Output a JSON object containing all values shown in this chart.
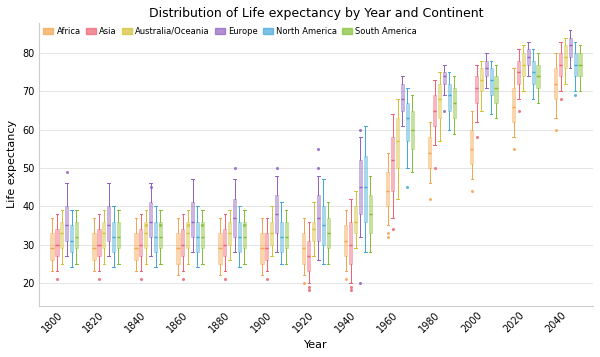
{
  "title": "Distribution of Life expectancy by Year and Continent",
  "xlabel": "Year",
  "ylabel": "Life expectancy",
  "continents": [
    "Africa",
    "Asia",
    "Australia/Oceania",
    "Europe",
    "North America",
    "South America"
  ],
  "colors": {
    "Africa": "#F4A44A",
    "Asia": "#EE6070",
    "Australia/Oceania": "#D4C030",
    "Europe": "#9060C0",
    "North America": "#40A8D8",
    "South America": "#80C030"
  },
  "years": [
    1800,
    1820,
    1840,
    1860,
    1880,
    1900,
    1920,
    1940,
    1960,
    1980,
    2000,
    2020,
    2040
  ],
  "ylim": [
    14,
    88
  ],
  "yticks": [
    20,
    30,
    40,
    50,
    60,
    70,
    80
  ],
  "background": "#ffffff",
  "grid_color": "#e0e0e0",
  "box_stats": {
    "Africa": {
      "1800": [
        23,
        26,
        29,
        33,
        37,
        []
      ],
      "1820": [
        23,
        26,
        29,
        33,
        37,
        []
      ],
      "1840": [
        23,
        26,
        29,
        33,
        37,
        []
      ],
      "1860": [
        22,
        25,
        29,
        33,
        37,
        []
      ],
      "1880": [
        22,
        25,
        29,
        33,
        37,
        []
      ],
      "1900": [
        22,
        25,
        29,
        33,
        37,
        []
      ],
      "1920": [
        22,
        25,
        29,
        33,
        37,
        [
          20
        ]
      ],
      "1940": [
        23,
        27,
        31,
        35,
        39,
        [
          21
        ]
      ],
      "1960": [
        35,
        40,
        44,
        49,
        54,
        [
          32,
          33
        ]
      ],
      "1980": [
        46,
        50,
        54,
        58,
        62,
        [
          42
        ]
      ],
      "2000": [
        47,
        51,
        55,
        60,
        65,
        [
          44
        ]
      ],
      "2020": [
        58,
        62,
        66,
        71,
        76,
        [
          55
        ]
      ],
      "2040": [
        63,
        68,
        72,
        76,
        80,
        [
          60
        ]
      ]
    },
    "Asia": {
      "1800": [
        23,
        27,
        30,
        34,
        38,
        [
          21
        ]
      ],
      "1820": [
        23,
        27,
        30,
        34,
        38,
        [
          21
        ]
      ],
      "1840": [
        23,
        27,
        30,
        34,
        38,
        [
          21
        ]
      ],
      "1860": [
        23,
        27,
        30,
        34,
        38,
        [
          21
        ]
      ],
      "1880": [
        23,
        27,
        30,
        34,
        38,
        [
          21
        ]
      ],
      "1900": [
        23,
        26,
        29,
        33,
        37,
        [
          21
        ]
      ],
      "1920": [
        20,
        23,
        27,
        31,
        36,
        [
          18,
          19
        ]
      ],
      "1940": [
        20,
        25,
        30,
        36,
        42,
        [
          18,
          19
        ]
      ],
      "1960": [
        37,
        44,
        52,
        58,
        64,
        [
          34
        ]
      ],
      "1980": [
        56,
        61,
        65,
        69,
        73,
        [
          50
        ]
      ],
      "2000": [
        62,
        67,
        71,
        74,
        77,
        [
          58
        ]
      ],
      "2020": [
        68,
        72,
        75,
        78,
        81,
        [
          65
        ]
      ],
      "2040": [
        70,
        74,
        77,
        80,
        83,
        [
          68
        ]
      ]
    },
    "Australia/Oceania": {
      "1800": [
        25,
        29,
        33,
        36,
        39,
        []
      ],
      "1820": [
        25,
        29,
        33,
        36,
        39,
        []
      ],
      "1840": [
        25,
        29,
        33,
        36,
        39,
        [
          35
        ]
      ],
      "1860": [
        25,
        29,
        33,
        36,
        39,
        [
          35
        ]
      ],
      "1880": [
        26,
        30,
        33,
        36,
        39,
        []
      ],
      "1900": [
        27,
        30,
        33,
        36,
        40,
        []
      ],
      "1920": [
        27,
        31,
        34,
        36,
        41,
        []
      ],
      "1940": [
        29,
        33,
        36,
        40,
        44,
        []
      ],
      "1960": [
        42,
        50,
        57,
        63,
        68,
        []
      ],
      "1980": [
        57,
        63,
        68,
        72,
        75,
        []
      ],
      "2000": [
        65,
        70,
        73,
        76,
        78,
        []
      ],
      "2020": [
        70,
        74,
        77,
        80,
        82,
        []
      ],
      "2040": [
        72,
        76,
        79,
        82,
        84,
        []
      ]
    },
    "Europe": {
      "1800": [
        27,
        31,
        35,
        40,
        46,
        [
          49
        ]
      ],
      "1820": [
        27,
        31,
        35,
        40,
        46,
        []
      ],
      "1840": [
        27,
        32,
        36,
        41,
        46,
        [
          45
        ]
      ],
      "1860": [
        28,
        32,
        36,
        41,
        47,
        []
      ],
      "1880": [
        28,
        32,
        37,
        42,
        47,
        [
          50
        ]
      ],
      "1900": [
        28,
        33,
        38,
        43,
        48,
        [
          50
        ]
      ],
      "1920": [
        26,
        31,
        37,
        43,
        48,
        [
          50,
          55
        ]
      ],
      "1940": [
        32,
        38,
        45,
        52,
        58,
        [
          60,
          20
        ]
      ],
      "1960": [
        61,
        65,
        68,
        72,
        74,
        []
      ],
      "1980": [
        69,
        72,
        74,
        75,
        77,
        [
          65
        ]
      ],
      "2000": [
        71,
        74,
        76,
        78,
        80,
        []
      ],
      "2020": [
        74,
        77,
        79,
        81,
        83,
        []
      ],
      "2040": [
        76,
        79,
        82,
        84,
        86,
        []
      ]
    },
    "North America": {
      "1800": [
        24,
        28,
        31,
        35,
        39,
        []
      ],
      "1820": [
        24,
        28,
        32,
        36,
        40,
        []
      ],
      "1840": [
        24,
        28,
        32,
        36,
        40,
        []
      ],
      "1860": [
        24,
        28,
        32,
        36,
        40,
        []
      ],
      "1880": [
        24,
        28,
        32,
        36,
        40,
        []
      ],
      "1900": [
        25,
        28,
        32,
        36,
        41,
        []
      ],
      "1920": [
        25,
        30,
        35,
        40,
        47,
        []
      ],
      "1940": [
        28,
        36,
        45,
        53,
        61,
        []
      ],
      "1960": [
        50,
        57,
        63,
        67,
        71,
        [
          45
        ]
      ],
      "1980": [
        60,
        65,
        69,
        72,
        75,
        []
      ],
      "2000": [
        64,
        69,
        73,
        76,
        78,
        []
      ],
      "2020": [
        68,
        72,
        75,
        78,
        81,
        []
      ],
      "2040": [
        70,
        74,
        77,
        80,
        83,
        [
          69
        ]
      ]
    },
    "South America": {
      "1800": [
        25,
        29,
        32,
        36,
        39,
        []
      ],
      "1820": [
        25,
        29,
        32,
        36,
        39,
        []
      ],
      "1840": [
        25,
        29,
        32,
        36,
        39,
        [
          35
        ]
      ],
      "1860": [
        25,
        29,
        32,
        36,
        39,
        [
          35
        ]
      ],
      "1880": [
        25,
        29,
        32,
        36,
        39,
        [
          35
        ]
      ],
      "1900": [
        25,
        29,
        32,
        36,
        39,
        []
      ],
      "1920": [
        25,
        29,
        33,
        37,
        41,
        []
      ],
      "1940": [
        28,
        33,
        38,
        43,
        48,
        []
      ],
      "1960": [
        49,
        55,
        60,
        65,
        69,
        []
      ],
      "1980": [
        59,
        63,
        67,
        71,
        74,
        []
      ],
      "2000": [
        63,
        67,
        71,
        74,
        77,
        []
      ],
      "2020": [
        67,
        71,
        74,
        77,
        80,
        []
      ],
      "2040": [
        70,
        74,
        77,
        80,
        82,
        []
      ]
    }
  }
}
